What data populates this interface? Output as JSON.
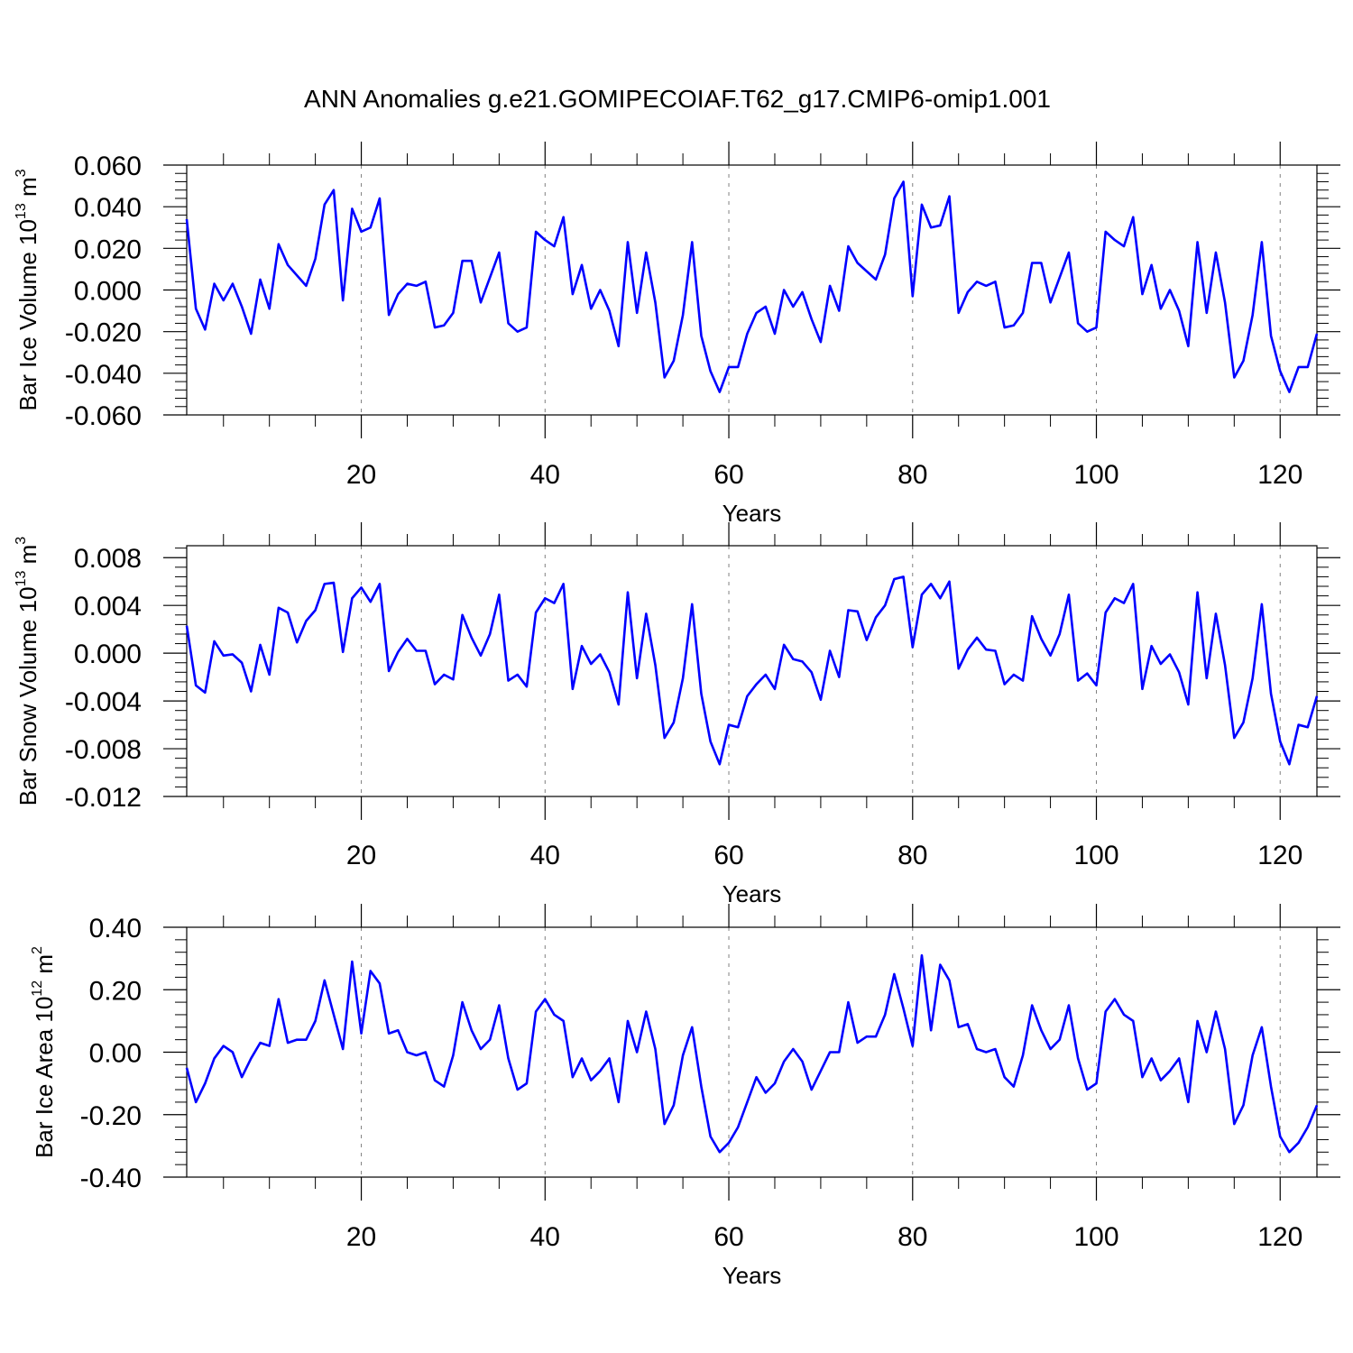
{
  "title": "ANN Anomalies g.e21.GOMIPECOIAF.T62_g17.CMIP6-omip1.001",
  "colors": {
    "series": "#0000ff",
    "axis": "#000000",
    "grid": "#808080"
  },
  "chart_data": [
    {
      "type": "line",
      "ylabel_text": "Bar Ice Volume 10",
      "ylabel_exp": "13",
      "ylabel_unit": " m",
      "ylabel_unit_exp": "3",
      "xlabel": "Years",
      "xlim": [
        1,
        124
      ],
      "ylim": [
        -0.06,
        0.06
      ],
      "xticks": [
        20,
        40,
        60,
        80,
        100,
        120
      ],
      "xtick_labels": [
        "20",
        "40",
        "60",
        "80",
        "100",
        "120"
      ],
      "yticks": [
        -0.06,
        -0.04,
        -0.02,
        0.0,
        0.02,
        0.04,
        0.06
      ],
      "ytick_labels": [
        "-0.060",
        "-0.040",
        "-0.020",
        "0.000",
        "0.020",
        "0.040",
        "0.060"
      ],
      "grid_x": [
        20,
        40,
        60,
        80,
        100,
        120
      ],
      "x_start": 1,
      "values": [
        0.034,
        -0.009,
        -0.019,
        0.003,
        -0.005,
        0.003,
        -0.008,
        -0.021,
        0.005,
        -0.009,
        0.022,
        0.012,
        0.007,
        0.002,
        0.015,
        0.041,
        0.048,
        -0.005,
        0.039,
        0.028,
        0.03,
        0.044,
        -0.012,
        -0.002,
        0.003,
        0.002,
        0.004,
        -0.018,
        -0.017,
        -0.011,
        0.014,
        0.014,
        -0.006,
        0.006,
        0.018,
        -0.016,
        -0.02,
        -0.018,
        0.028,
        0.024,
        0.021,
        0.035,
        -0.002,
        0.012,
        -0.009,
        0.0,
        -0.01,
        -0.027,
        0.023,
        -0.011,
        0.018,
        -0.006,
        -0.042,
        -0.034,
        -0.012,
        0.023,
        -0.022,
        -0.039,
        -0.049,
        -0.037,
        -0.037,
        -0.021,
        -0.011,
        -0.008,
        -0.021,
        0.0,
        -0.008,
        -0.001,
        -0.014,
        -0.025,
        0.002,
        -0.01,
        0.021,
        0.013,
        0.009,
        0.005,
        0.017,
        0.044,
        0.052,
        -0.003,
        0.041,
        0.03,
        0.031,
        0.045,
        -0.011,
        -0.001,
        0.004,
        0.002,
        0.004,
        -0.018,
        -0.017,
        -0.011,
        0.013,
        0.013,
        -0.006,
        0.006,
        0.018,
        -0.016,
        -0.02,
        -0.018,
        0.028,
        0.024,
        0.021,
        0.035,
        -0.002,
        0.012,
        -0.009,
        0.0,
        -0.01,
        -0.027,
        0.023,
        -0.011,
        0.018,
        -0.006,
        -0.042,
        -0.034,
        -0.012,
        0.023,
        -0.022,
        -0.039,
        -0.049,
        -0.037,
        -0.037,
        -0.021
      ]
    },
    {
      "type": "line",
      "ylabel_text": "Bar Snow Volume 10",
      "ylabel_exp": "13",
      "ylabel_unit": " m",
      "ylabel_unit_exp": "3",
      "xlabel": "Years",
      "xlim": [
        1,
        124
      ],
      "ylim": [
        -0.012,
        0.009
      ],
      "xticks": [
        20,
        40,
        60,
        80,
        100,
        120
      ],
      "xtick_labels": [
        "20",
        "40",
        "60",
        "80",
        "100",
        "120"
      ],
      "yticks": [
        -0.012,
        -0.008,
        -0.004,
        0.0,
        0.004,
        0.008
      ],
      "ytick_labels": [
        "-0.012",
        "-0.008",
        "-0.004",
        "0.000",
        "0.004",
        "0.008"
      ],
      "grid_x": [
        20,
        40,
        60,
        80,
        100,
        120
      ],
      "x_start": 1,
      "values": [
        0.0023,
        -0.0027,
        -0.0033,
        0.001,
        -0.0002,
        -0.0001,
        -0.0008,
        -0.0032,
        0.0007,
        -0.0018,
        0.0038,
        0.0034,
        0.0009,
        0.0027,
        0.0036,
        0.0058,
        0.0059,
        0.0001,
        0.0046,
        0.0055,
        0.0043,
        0.0058,
        -0.0015,
        0.0001,
        0.0012,
        0.0002,
        0.0002,
        -0.0026,
        -0.0018,
        -0.0022,
        0.0032,
        0.0013,
        -0.0002,
        0.0016,
        0.0049,
        -0.0023,
        -0.0018,
        -0.0028,
        0.0034,
        0.0046,
        0.0042,
        0.0058,
        -0.003,
        0.0006,
        -0.0009,
        -0.0001,
        -0.0016,
        -0.0043,
        0.0051,
        -0.0021,
        0.0033,
        -0.001,
        -0.0071,
        -0.0058,
        -0.0021,
        0.0041,
        -0.0034,
        -0.0074,
        -0.0093,
        -0.006,
        -0.0062,
        -0.0036,
        -0.0026,
        -0.0018,
        -0.003,
        0.0007,
        -0.0005,
        -0.0007,
        -0.0016,
        -0.0039,
        0.0002,
        -0.002,
        0.0036,
        0.0035,
        0.0011,
        0.003,
        0.004,
        0.0062,
        0.0064,
        0.0005,
        0.0049,
        0.0058,
        0.0046,
        0.006,
        -0.0013,
        0.0003,
        0.0013,
        0.0003,
        0.0002,
        -0.0026,
        -0.0018,
        -0.0023,
        0.0031,
        0.0012,
        -0.0002,
        0.0016,
        0.0049,
        -0.0023,
        -0.0017,
        -0.0027,
        0.0034,
        0.0046,
        0.0042,
        0.0058,
        -0.003,
        0.0006,
        -0.0009,
        -0.0001,
        -0.0016,
        -0.0043,
        0.0051,
        -0.0021,
        0.0033,
        -0.001,
        -0.0071,
        -0.0058,
        -0.0021,
        0.0041,
        -0.0034,
        -0.0074,
        -0.0093,
        -0.006,
        -0.0062,
        -0.0036
      ]
    },
    {
      "type": "line",
      "ylabel_text": "Bar Ice Area 10",
      "ylabel_exp": "12",
      "ylabel_unit": " m",
      "ylabel_unit_exp": "2",
      "xlabel": "Years",
      "xlim": [
        1,
        124
      ],
      "ylim": [
        -0.4,
        0.4
      ],
      "xticks": [
        20,
        40,
        60,
        80,
        100,
        120
      ],
      "xtick_labels": [
        "20",
        "40",
        "60",
        "80",
        "100",
        "120"
      ],
      "yticks": [
        -0.4,
        -0.2,
        0.0,
        0.2,
        0.4
      ],
      "ytick_labels": [
        "-0.40",
        "-0.20",
        "0.00",
        "0.20",
        "0.40"
      ],
      "grid_x": [
        20,
        40,
        60,
        80,
        100,
        120
      ],
      "x_start": 1,
      "values": [
        -0.05,
        -0.16,
        -0.1,
        -0.02,
        0.02,
        0.0,
        -0.08,
        -0.02,
        0.03,
        0.02,
        0.17,
        0.03,
        0.04,
        0.04,
        0.1,
        0.23,
        0.12,
        0.01,
        0.29,
        0.06,
        0.26,
        0.22,
        0.06,
        0.07,
        0.0,
        -0.01,
        0.0,
        -0.09,
        -0.11,
        -0.01,
        0.16,
        0.07,
        0.01,
        0.04,
        0.15,
        -0.02,
        -0.12,
        -0.1,
        0.13,
        0.17,
        0.12,
        0.1,
        -0.08,
        -0.02,
        -0.09,
        -0.06,
        -0.02,
        -0.16,
        0.1,
        0.0,
        0.13,
        0.01,
        -0.23,
        -0.17,
        -0.01,
        0.08,
        -0.11,
        -0.27,
        -0.32,
        -0.29,
        -0.24,
        -0.16,
        -0.08,
        -0.13,
        -0.1,
        -0.03,
        0.01,
        -0.03,
        -0.12,
        -0.06,
        0.0,
        0.0,
        0.16,
        0.03,
        0.05,
        0.05,
        0.12,
        0.25,
        0.14,
        0.02,
        0.31,
        0.07,
        0.28,
        0.23,
        0.08,
        0.09,
        0.01,
        0.0,
        0.01,
        -0.08,
        -0.11,
        -0.01,
        0.15,
        0.07,
        0.01,
        0.04,
        0.15,
        -0.02,
        -0.12,
        -0.1,
        0.13,
        0.17,
        0.12,
        0.1,
        -0.08,
        -0.02,
        -0.09,
        -0.06,
        -0.02,
        -0.16,
        0.1,
        0.0,
        0.13,
        0.01,
        -0.23,
        -0.17,
        -0.01,
        0.08,
        -0.11,
        -0.27,
        -0.32,
        -0.29,
        -0.24,
        -0.17
      ]
    }
  ]
}
